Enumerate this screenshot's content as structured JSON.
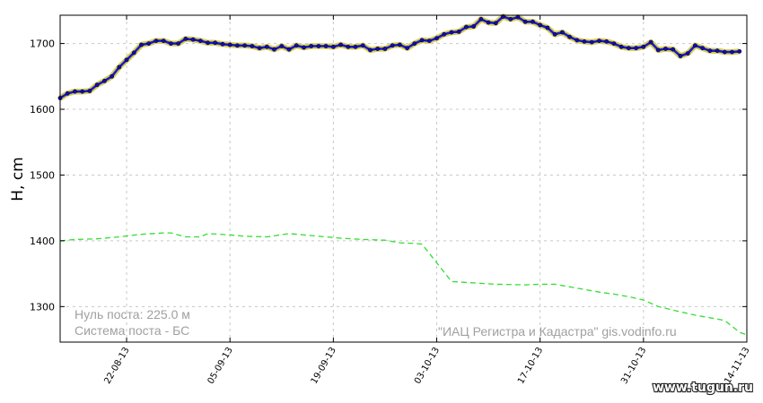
{
  "chart_data": {
    "type": "line",
    "ylabel": "H, cm",
    "ylim": [
      1246,
      1743
    ],
    "x_start": "2013-08-13",
    "x_end": "2013-11-14",
    "yticks": [
      1300,
      1400,
      1500,
      1600,
      1700
    ],
    "xticks": [
      {
        "date": "2013-08-22",
        "label": "22-08-13"
      },
      {
        "date": "2013-09-05",
        "label": "05-09-13"
      },
      {
        "date": "2013-09-19",
        "label": "19-09-13"
      },
      {
        "date": "2013-10-03",
        "label": "03-10-13"
      },
      {
        "date": "2013-10-17",
        "label": "17-10-13"
      },
      {
        "date": "2013-10-31",
        "label": "31-10-13"
      },
      {
        "date": "2013-11-14",
        "label": "14-11-13"
      }
    ],
    "grid": true,
    "series": [
      {
        "style": "solid-blue-markers",
        "color": "#1a1acc",
        "points": [
          [
            "2013-08-13",
            1617
          ],
          [
            "2013-08-14",
            1624
          ],
          [
            "2013-08-15",
            1627
          ],
          [
            "2013-08-16",
            1627
          ],
          [
            "2013-08-17",
            1628
          ],
          [
            "2013-08-18",
            1637
          ],
          [
            "2013-08-19",
            1643
          ],
          [
            "2013-08-20",
            1650
          ],
          [
            "2013-08-21",
            1664
          ],
          [
            "2013-08-22",
            1675
          ],
          [
            "2013-08-23",
            1686
          ],
          [
            "2013-08-24",
            1698
          ],
          [
            "2013-08-25",
            1700
          ],
          [
            "2013-08-26",
            1704
          ],
          [
            "2013-08-27",
            1704
          ],
          [
            "2013-08-28",
            1700
          ],
          [
            "2013-08-29",
            1700
          ],
          [
            "2013-08-30",
            1707
          ],
          [
            "2013-08-31",
            1706
          ],
          [
            "2013-09-01",
            1704
          ],
          [
            "2013-09-02",
            1701
          ],
          [
            "2013-09-03",
            1701
          ],
          [
            "2013-09-04",
            1699
          ],
          [
            "2013-09-05",
            1698
          ],
          [
            "2013-09-06",
            1697
          ],
          [
            "2013-09-07",
            1697
          ],
          [
            "2013-09-08",
            1696
          ],
          [
            "2013-09-09",
            1693
          ],
          [
            "2013-09-10",
            1695
          ],
          [
            "2013-09-11",
            1691
          ],
          [
            "2013-09-12",
            1696
          ],
          [
            "2013-09-13",
            1691
          ],
          [
            "2013-09-14",
            1697
          ],
          [
            "2013-09-15",
            1694
          ],
          [
            "2013-09-16",
            1696
          ],
          [
            "2013-09-17",
            1696
          ],
          [
            "2013-09-18",
            1696
          ],
          [
            "2013-09-19",
            1695
          ],
          [
            "2013-09-20",
            1698
          ],
          [
            "2013-09-21",
            1695
          ],
          [
            "2013-09-22",
            1695
          ],
          [
            "2013-09-23",
            1697
          ],
          [
            "2013-09-24",
            1690
          ],
          [
            "2013-09-25",
            1692
          ],
          [
            "2013-09-26",
            1692
          ],
          [
            "2013-09-27",
            1697
          ],
          [
            "2013-09-28",
            1698
          ],
          [
            "2013-09-29",
            1693
          ],
          [
            "2013-09-30",
            1700
          ],
          [
            "2013-10-01",
            1705
          ],
          [
            "2013-10-02",
            1704
          ],
          [
            "2013-10-03",
            1708
          ],
          [
            "2013-10-04",
            1714
          ],
          [
            "2013-10-05",
            1717
          ],
          [
            "2013-10-06",
            1718
          ],
          [
            "2013-10-07",
            1725
          ],
          [
            "2013-10-08",
            1726
          ],
          [
            "2013-10-09",
            1737
          ],
          [
            "2013-10-10",
            1732
          ],
          [
            "2013-10-11",
            1731
          ],
          [
            "2013-10-12",
            1741
          ],
          [
            "2013-10-13",
            1737
          ],
          [
            "2013-10-14",
            1740
          ],
          [
            "2013-10-15",
            1733
          ],
          [
            "2013-10-16",
            1733
          ],
          [
            "2013-10-17",
            1728
          ],
          [
            "2013-10-18",
            1724
          ],
          [
            "2013-10-19",
            1714
          ],
          [
            "2013-10-20",
            1717
          ],
          [
            "2013-10-21",
            1710
          ],
          [
            "2013-10-22",
            1705
          ],
          [
            "2013-10-23",
            1703
          ],
          [
            "2013-10-24",
            1702
          ],
          [
            "2013-10-25",
            1704
          ],
          [
            "2013-10-26",
            1703
          ],
          [
            "2013-10-27",
            1700
          ],
          [
            "2013-10-28",
            1695
          ],
          [
            "2013-10-29",
            1693
          ],
          [
            "2013-10-30",
            1693
          ],
          [
            "2013-10-31",
            1695
          ],
          [
            "2013-11-01",
            1702
          ],
          [
            "2013-11-02",
            1690
          ],
          [
            "2013-11-03",
            1692
          ],
          [
            "2013-11-04",
            1691
          ],
          [
            "2013-11-05",
            1681
          ],
          [
            "2013-11-06",
            1685
          ],
          [
            "2013-11-07",
            1697
          ],
          [
            "2013-11-08",
            1693
          ],
          [
            "2013-11-09",
            1689
          ],
          [
            "2013-11-10",
            1689
          ],
          [
            "2013-11-11",
            1687
          ],
          [
            "2013-11-12",
            1687
          ],
          [
            "2013-11-13",
            1688
          ]
        ]
      },
      {
        "style": "dashed-green",
        "color": "#33dd33",
        "points": [
          [
            "2013-08-13",
            1400
          ],
          [
            "2013-08-15",
            1402
          ],
          [
            "2013-08-18",
            1403
          ],
          [
            "2013-08-21",
            1406
          ],
          [
            "2013-08-24",
            1410
          ],
          [
            "2013-08-27",
            1412
          ],
          [
            "2013-08-28",
            1412
          ],
          [
            "2013-08-30",
            1406
          ],
          [
            "2013-09-01",
            1406
          ],
          [
            "2013-09-02",
            1411
          ],
          [
            "2013-09-05",
            1409
          ],
          [
            "2013-09-07",
            1407
          ],
          [
            "2013-09-10",
            1406
          ],
          [
            "2013-09-13",
            1411
          ],
          [
            "2013-09-16",
            1408
          ],
          [
            "2013-09-20",
            1404
          ],
          [
            "2013-09-23",
            1402
          ],
          [
            "2013-09-26",
            1401
          ],
          [
            "2013-09-28",
            1397
          ],
          [
            "2013-09-30",
            1396
          ],
          [
            "2013-10-01",
            1395
          ],
          [
            "2013-10-05",
            1338
          ],
          [
            "2013-10-08",
            1336
          ],
          [
            "2013-10-11",
            1334
          ],
          [
            "2013-10-15",
            1333
          ],
          [
            "2013-10-17",
            1334
          ],
          [
            "2013-10-19",
            1334
          ],
          [
            "2013-10-21",
            1330
          ],
          [
            "2013-10-23",
            1326
          ],
          [
            "2013-10-25",
            1322
          ],
          [
            "2013-10-27",
            1319
          ],
          [
            "2013-10-29",
            1315
          ],
          [
            "2013-10-31",
            1310
          ],
          [
            "2013-11-02",
            1300
          ],
          [
            "2013-11-05",
            1292
          ],
          [
            "2013-11-07",
            1287
          ],
          [
            "2013-11-09",
            1283
          ],
          [
            "2013-11-11",
            1279
          ],
          [
            "2013-11-13",
            1261
          ],
          [
            "2013-11-14",
            1257
          ]
        ]
      }
    ],
    "annotations": {
      "zero_post": "Нуль поста: 225.0 м",
      "system": "Система поста - БС",
      "source": "\"ИАЦ Регистра и Кадастра\"   gis.vodinfo.ru"
    },
    "watermark": "www.tugun.ru"
  }
}
